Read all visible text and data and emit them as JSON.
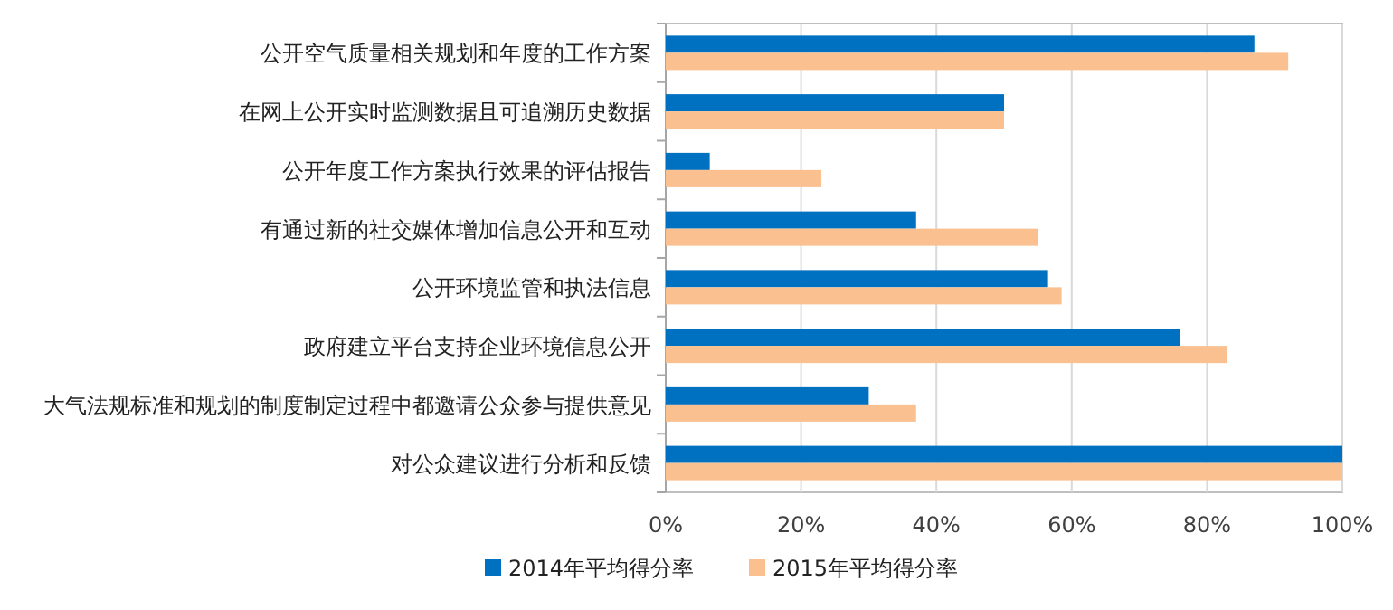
{
  "chart_data": {
    "type": "bar",
    "orientation": "horizontal",
    "categories": [
      "公开空气质量相关规划和年度的工作方案",
      "在网上公开实时监测数据且可追溯历史数据",
      "公开年度工作方案执行效果的评估报告",
      "有通过新的社交媒体增加信息公开和互动",
      "公开环境监管和执法信息",
      "政府建立平台支持企业环境信息公开",
      "大气法规标准和规划的制度制定过程中都邀请公众参与提供意见",
      "对公众建议进行分析和反馈"
    ],
    "series": [
      {
        "name": "2014年平均得分率",
        "color": "#0070c0",
        "values": [
          87,
          50,
          6.5,
          37,
          56.5,
          76,
          30,
          100
        ]
      },
      {
        "name": "2015年平均得分率",
        "color": "#fac090",
        "values": [
          92,
          50,
          23,
          55,
          58.5,
          83,
          37,
          100
        ]
      }
    ],
    "xlim": [
      0,
      100
    ],
    "xticks": [
      {
        "value": 0,
        "label": "0%"
      },
      {
        "value": 20,
        "label": "20%"
      },
      {
        "value": 40,
        "label": "40%"
      },
      {
        "value": 60,
        "label": "60%"
      },
      {
        "value": 80,
        "label": "80%"
      },
      {
        "value": 100,
        "label": "100%"
      }
    ],
    "grid": "x",
    "legend": "bottom"
  }
}
